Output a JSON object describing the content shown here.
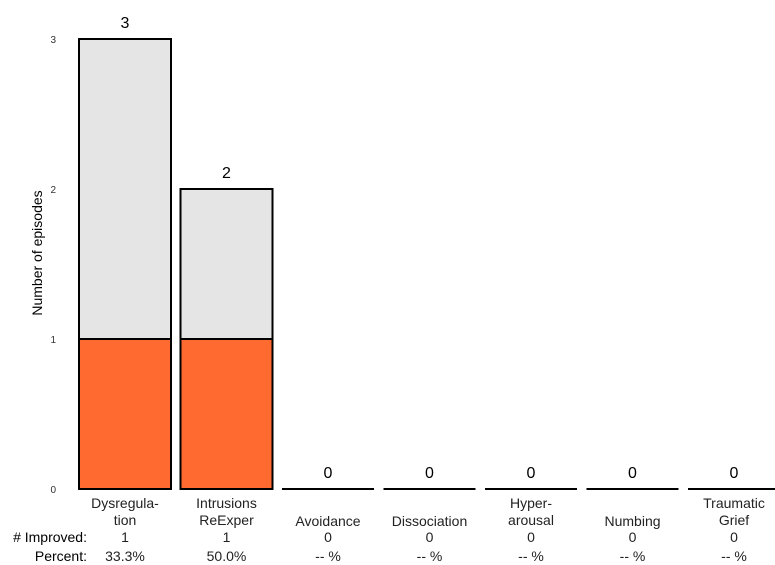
{
  "chart_data": {
    "type": "bar",
    "stacked": true,
    "ylabel": "Number of episodes",
    "ylim": [
      0,
      3
    ],
    "yticks": [
      "0",
      "1",
      "2",
      "3"
    ],
    "grid": false,
    "categories": [
      [
        "Dysregula-",
        "tion"
      ],
      [
        "Intrusions",
        "ReExper"
      ],
      [
        "Avoidance"
      ],
      [
        "Dissociation"
      ],
      [
        "Hyper-",
        "arousal"
      ],
      [
        "Numbing"
      ],
      [
        "Traumatic",
        "Grief"
      ]
    ],
    "totals": [
      3,
      2,
      0,
      0,
      0,
      0,
      0
    ],
    "total_labels": [
      "3",
      "2",
      "0",
      "0",
      "0",
      "0",
      "0"
    ],
    "series": [
      {
        "values": [
          1,
          1,
          0,
          0,
          0,
          0,
          0
        ],
        "color": "#ff6a30"
      },
      {
        "values": [
          2,
          1,
          0,
          0,
          0,
          0,
          0
        ],
        "color": "#e5e5e5"
      }
    ],
    "row_labels": {
      "improved": "# Improved:",
      "percent": "Percent:"
    },
    "improved": [
      "1",
      "1",
      "0",
      "0",
      "0",
      "0",
      "0"
    ],
    "percent": [
      "33.3%",
      "50.0%",
      "-- %",
      "-- %",
      "-- %",
      "-- %",
      "-- %"
    ]
  }
}
